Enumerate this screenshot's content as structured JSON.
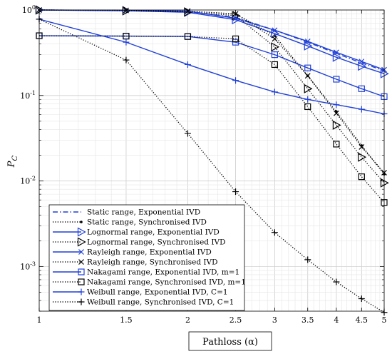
{
  "chart_data": {
    "type": "line",
    "title": "",
    "xlabel": "Pathloss (α)",
    "ylabel_main": "P",
    "ylabel_sub": "C",
    "xscale": "log",
    "yscale": "log",
    "xlim": [
      1,
      5
    ],
    "ylim": [
      0.0003,
      1
    ],
    "xticks": [
      1,
      1.5,
      2,
      2.5,
      3,
      3.5,
      4,
      4.5,
      5
    ],
    "xtick_labels": [
      "1",
      "1.5",
      "2",
      "2.5",
      "3",
      "3.5",
      "4",
      "4.5",
      "5"
    ],
    "yticks": [
      0.001,
      0.01,
      0.1,
      1
    ],
    "ytick_bases": [
      "10",
      "10",
      "10",
      "10"
    ],
    "ytick_exps": [
      "-3",
      "-2",
      "-1",
      "0"
    ],
    "grid": true,
    "legend_position": "bottom-left",
    "series": [
      {
        "name": "Static range, Exponential IVD",
        "color": "#1f3fd6",
        "linestyle": "dashdot",
        "marker": "none",
        "x": [
          1,
          1.5,
          2,
          2.5,
          3,
          3.5,
          4,
          4.5,
          5
        ],
        "y": [
          1.0,
          0.99,
          0.96,
          0.82,
          0.58,
          0.42,
          0.31,
          0.24,
          0.195
        ]
      },
      {
        "name": "Static range, Synchronised IVD",
        "color": "#000000",
        "linestyle": "dotted",
        "marker": "dot",
        "x": [
          1,
          1.5,
          2,
          2.5,
          3,
          3.5,
          4,
          4.5,
          5
        ],
        "y": [
          1.0,
          0.99,
          0.97,
          0.9,
          0.5,
          0.17,
          0.065,
          0.026,
          0.012
        ]
      },
      {
        "name": "Lognormal range, Exponential IVD",
        "color": "#1f3fd6",
        "linestyle": "solid",
        "marker": "triangle-right",
        "x": [
          1,
          1.5,
          2,
          2.5,
          3,
          3.5,
          4,
          4.5,
          5
        ],
        "y": [
          1.0,
          0.98,
          0.94,
          0.77,
          0.53,
          0.38,
          0.28,
          0.22,
          0.18
        ]
      },
      {
        "name": "Lognormal range, Synchronised IVD",
        "color": "#000000",
        "linestyle": "dotted",
        "marker": "triangle-right",
        "x": [
          1,
          1.5,
          2,
          2.5,
          3,
          3.5,
          4,
          4.5,
          5
        ],
        "y": [
          1.0,
          0.98,
          0.95,
          0.86,
          0.37,
          0.12,
          0.045,
          0.019,
          0.0095
        ]
      },
      {
        "name": "Rayleigh range, Exponential IVD",
        "color": "#1f3fd6",
        "linestyle": "solid",
        "marker": "x",
        "x": [
          1,
          1.5,
          2,
          2.5,
          3,
          3.5,
          4,
          4.5,
          5
        ],
        "y": [
          1.0,
          0.99,
          0.97,
          0.8,
          0.58,
          0.43,
          0.32,
          0.25,
          0.2
        ]
      },
      {
        "name": "Rayleigh range, Synchronised IVD",
        "color": "#000000",
        "linestyle": "dotted",
        "marker": "x",
        "x": [
          1,
          1.5,
          2,
          2.5,
          3,
          3.5,
          4,
          4.5,
          5
        ],
        "y": [
          1.0,
          0.99,
          0.97,
          0.9,
          0.46,
          0.17,
          0.062,
          0.025,
          0.0125
        ]
      },
      {
        "name": "Nakagami range, Exponential IVD, m=1",
        "color": "#1f3fd6",
        "linestyle": "solid",
        "marker": "square",
        "x": [
          1,
          1.5,
          2,
          2.5,
          3,
          3.5,
          4,
          4.5,
          5
        ],
        "y": [
          0.5,
          0.495,
          0.49,
          0.42,
          0.3,
          0.21,
          0.155,
          0.12,
          0.097
        ]
      },
      {
        "name": "Nakagami range, Synchronised IVD, m=1",
        "color": "#000000",
        "linestyle": "dotted",
        "marker": "square",
        "x": [
          1,
          1.5,
          2,
          2.5,
          3,
          3.5,
          4,
          4.5,
          5
        ],
        "y": [
          0.5,
          0.495,
          0.49,
          0.46,
          0.23,
          0.074,
          0.027,
          0.0112,
          0.0056
        ]
      },
      {
        "name": "Weibull range, Exponential IVD, C=1",
        "color": "#1f3fd6",
        "linestyle": "solid",
        "marker": "plus",
        "x": [
          1,
          1.5,
          2,
          2.5,
          3,
          3.5,
          4,
          4.5,
          5
        ],
        "y": [
          0.78,
          0.42,
          0.23,
          0.15,
          0.11,
          0.09,
          0.078,
          0.069,
          0.061
        ]
      },
      {
        "name": "Weibull range, Synchronised IVD, C=1",
        "color": "#000000",
        "linestyle": "dotted",
        "marker": "plus",
        "x": [
          1,
          1.5,
          2,
          2.5,
          3,
          3.5,
          4,
          4.5,
          5
        ],
        "y": [
          0.78,
          0.26,
          0.036,
          0.0075,
          0.0025,
          0.0012,
          0.00066,
          0.00042,
          0.00029
        ]
      }
    ]
  }
}
